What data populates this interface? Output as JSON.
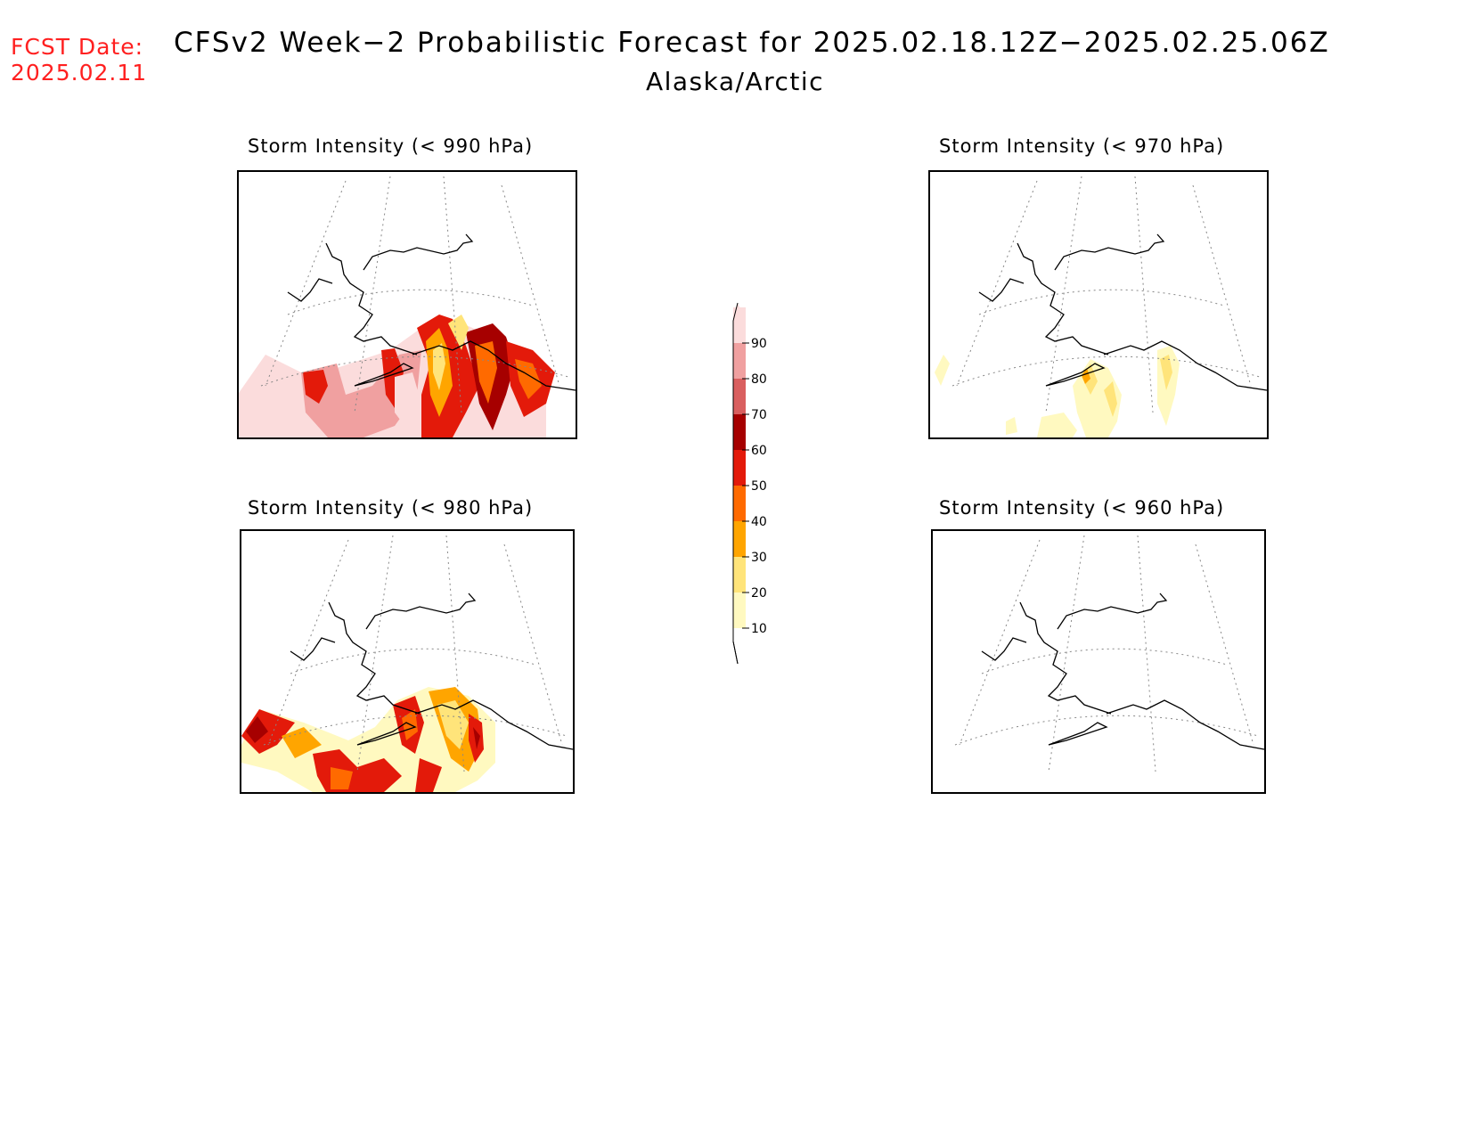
{
  "header": {
    "fcst_label": "FCST Date:",
    "fcst_date": "2025.02.11",
    "title": "CFSv2 Week−2 Probabilistic Forecast for 2025.02.18.12Z−2025.02.25.06Z",
    "subtitle": "Alaska/Arctic"
  },
  "panels": [
    {
      "id": "p990",
      "title": "Storm Intensity (< 990 hPa)",
      "threshold_hpa": 990,
      "max_probability": 90
    },
    {
      "id": "p970",
      "title": "Storm Intensity (< 970 hPa)",
      "threshold_hpa": 970,
      "max_probability": 30
    },
    {
      "id": "p980",
      "title": "Storm Intensity (< 980 hPa)",
      "threshold_hpa": 980,
      "max_probability": 70
    },
    {
      "id": "p960",
      "title": "Storm Intensity (< 960 hPa)",
      "threshold_hpa": 960,
      "max_probability": 0
    }
  ],
  "colorbar": {
    "levels": [
      "10",
      "20",
      "30",
      "40",
      "50",
      "60",
      "70",
      "80",
      "90"
    ],
    "colors": [
      "#fff9c0",
      "#ffe47a",
      "#ffa500",
      "#ff6a00",
      "#e31a0a",
      "#a60000",
      "#d95f5f",
      "#f0a0a0",
      "#fbdcdc"
    ]
  }
}
